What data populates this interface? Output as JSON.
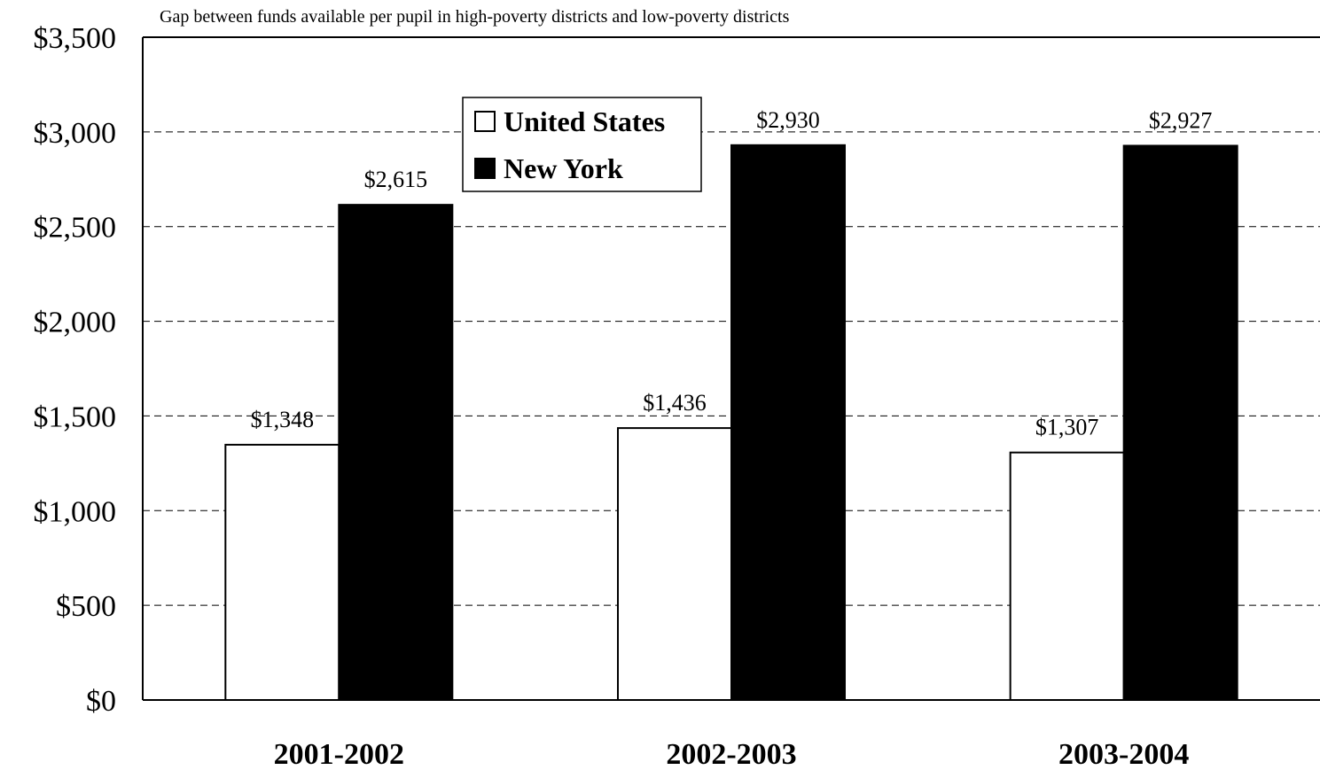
{
  "chart_data": {
    "type": "bar",
    "title": "",
    "subtitle": "Gap between funds available per pupil in high-poverty districts and low-poverty districts",
    "xlabel": "",
    "ylabel": "",
    "categories": [
      "2001-2002",
      "2002-2003",
      "2003-2004"
    ],
    "series": [
      {
        "name": "United States",
        "values": [
          1348,
          1436,
          1307
        ],
        "labels": [
          "$1,348",
          "$1,436",
          "$1,307"
        ],
        "color": "#ffffff"
      },
      {
        "name": "New York",
        "values": [
          2615,
          2930,
          2927
        ],
        "labels": [
          "$2,615",
          "$2,930",
          "$2,927"
        ],
        "color": "#000000"
      }
    ],
    "ylim": [
      0,
      3500
    ],
    "yticks": [
      0,
      500,
      1000,
      1500,
      2000,
      2500,
      3000,
      3500
    ],
    "ytick_labels": [
      "$0",
      "$500",
      "$1,000",
      "$1,500",
      "$2,000",
      "$2,500",
      "$3,000",
      "$3,500"
    ],
    "grid": "horizontal-dashed",
    "legend_position": "top-left"
  }
}
